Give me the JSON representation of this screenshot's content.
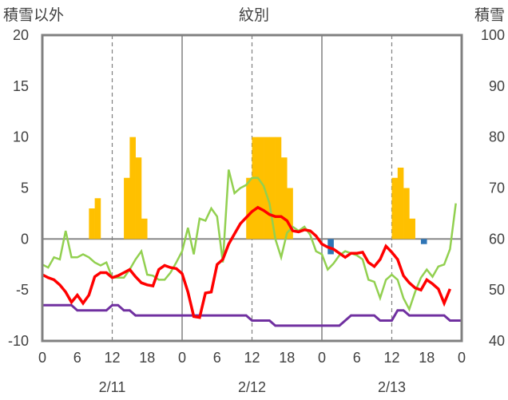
{
  "chart_data": {
    "type": "bar+line",
    "title": "紋別",
    "left_axis_label": "積雪以外",
    "right_axis_label": "積雪",
    "left_ylim": [
      -10,
      20
    ],
    "left_yticks": [
      "20",
      "15",
      "10",
      "5",
      "0",
      "-5",
      "-10"
    ],
    "right_ylim": [
      40,
      100
    ],
    "right_yticks": [
      "100",
      "90",
      "80",
      "70",
      "60",
      "50",
      "40"
    ],
    "x_hour_ticks": [
      "0",
      "6",
      "12",
      "18",
      "0",
      "6",
      "12",
      "18",
      "0",
      "6",
      "12",
      "18",
      "0"
    ],
    "date_labels": [
      "2/11",
      "2/12",
      "2/13"
    ],
    "grid": "dashed vertical lines at 12h, solid at day boundaries",
    "colors": {
      "temperature": "#ff0000",
      "green_series": "#92d050",
      "purple_series": "#7030a0",
      "precip_positive": "#ffc000",
      "precip_negative": "#2e75b6",
      "frame": "#808080"
    },
    "bars": {
      "hours": [
        8,
        9,
        14,
        15,
        16,
        17,
        35,
        36,
        37,
        38,
        39,
        40,
        41,
        42,
        43,
        49,
        60,
        61,
        62,
        63,
        65
      ],
      "values": [
        3,
        4,
        6,
        10,
        8,
        2,
        6,
        10,
        10,
        10,
        10,
        10,
        8,
        5,
        0,
        -1.5,
        6,
        7,
        5,
        2,
        -0.5
      ]
    },
    "series": {
      "temperature": [
        -3.5,
        -3.8,
        -4,
        -4.5,
        -5.2,
        -6.2,
        -5.5,
        -6.3,
        -5.5,
        -3.7,
        -3.3,
        -3.3,
        -3.8,
        -3.6,
        -3.3,
        -3,
        -3.7,
        -4.3,
        -4.5,
        -4.6,
        -3,
        -2.6,
        -2.8,
        -2.9,
        -3.4,
        -5.2,
        -7.6,
        -7.7,
        -5.3,
        -5.2,
        -2.5,
        -2,
        -0.5,
        0.5,
        1.5,
        2.1,
        2.7,
        3.1,
        2.8,
        2.4,
        2.2,
        2.2,
        1.8,
        0.8,
        0.7,
        0.9,
        0.8,
        0.3,
        -0.5,
        -0.8,
        -1,
        -1.4,
        -1.8,
        -1.4,
        -1.4,
        -1.3,
        -2.3,
        -2.7,
        -2,
        -0.7,
        -1.3,
        -2,
        -3.6,
        -4.3,
        -4.8,
        -5,
        -4,
        -4.4,
        -4.9,
        -6.3,
        -4.9
      ],
      "green": [
        -2.5,
        -2.8,
        -1.8,
        -2,
        0.8,
        -1.8,
        -1.8,
        -1.5,
        -1.8,
        -2.3,
        -2.6,
        -2.3,
        -3.8,
        -3.8,
        -3.8,
        -3,
        -2,
        -1.2,
        -3.5,
        -3.6,
        -4,
        -4,
        -3.3,
        -2.3,
        -1.2,
        1.1,
        -1.5,
        2,
        1.8,
        3,
        2.2,
        -2.3,
        6.8,
        4.5,
        5,
        5.3,
        6,
        6,
        5.2,
        3.5,
        0,
        -1.8,
        0.6,
        1.2,
        0.8,
        1.2,
        0.4,
        -1.2,
        -1.5,
        -3,
        -2.4,
        -1.6,
        -1.2,
        -1.4,
        -1.6,
        -2,
        -4,
        -4.2,
        -5.8,
        -4,
        -3.5,
        -4,
        -5.8,
        -6.9,
        -5.2,
        -3.8,
        -3,
        -3.7,
        -2.7,
        -2.5,
        -1,
        3.5
      ],
      "purple": [
        -6.5,
        -6.5,
        -6.5,
        -6.5,
        -6.5,
        -6.5,
        -7,
        -7,
        -7,
        -7,
        -7,
        -7,
        -6.5,
        -6.5,
        -7,
        -7,
        -7.5,
        -7.5,
        -7.5,
        -7.5,
        -7.5,
        -7.5,
        -7.5,
        -7.5,
        -7.5,
        -7.5,
        -7.5,
        -7.5,
        -7.5,
        -7.5,
        -7.5,
        -7.5,
        -7.5,
        -7.5,
        -7.5,
        -7.5,
        -8,
        -8,
        -8,
        -8,
        -8.5,
        -8.5,
        -8.5,
        -8.5,
        -8.5,
        -8.5,
        -8.5,
        -8.5,
        -8.5,
        -8.5,
        -8.5,
        -8.5,
        -8,
        -7.5,
        -7.5,
        -7.5,
        -7.5,
        -7.5,
        -8,
        -8,
        -8,
        -7,
        -7,
        -7.5,
        -7.5,
        -7.5,
        -7.5,
        -7.5,
        -7.5,
        -7.5,
        -8,
        -8,
        -8
      ]
    }
  }
}
